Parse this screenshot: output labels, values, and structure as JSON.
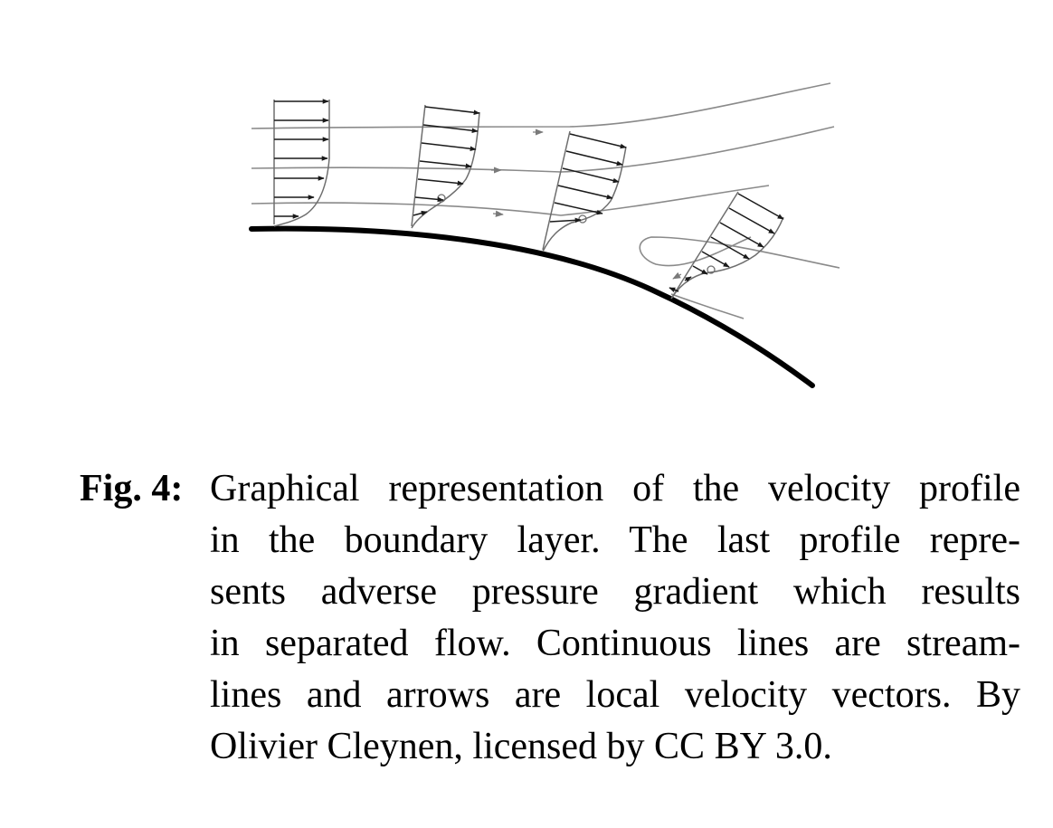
{
  "figure": {
    "caption_label": "Fig. 4:",
    "caption_lines": [
      "Graphical representation of the velocity profile",
      "in the boundary layer.  The last profile repre-",
      "sents adverse pressure gradient which results",
      "in separated flow. Continuous lines are stream-",
      "lines and arrows are local velocity vectors. By",
      "Olivier Cleynen, licensed by CC BY 3.0."
    ],
    "colors": {
      "wall": "#000000",
      "streamline": "#8a8a8a",
      "arrow": "#1a1a1a",
      "profile": "#6e6e6e"
    },
    "elements": {
      "wall": "surface-wall",
      "streamlines": "streamline",
      "profiles": "velocity-profile",
      "vectors": "velocity-vector-arrow"
    }
  }
}
